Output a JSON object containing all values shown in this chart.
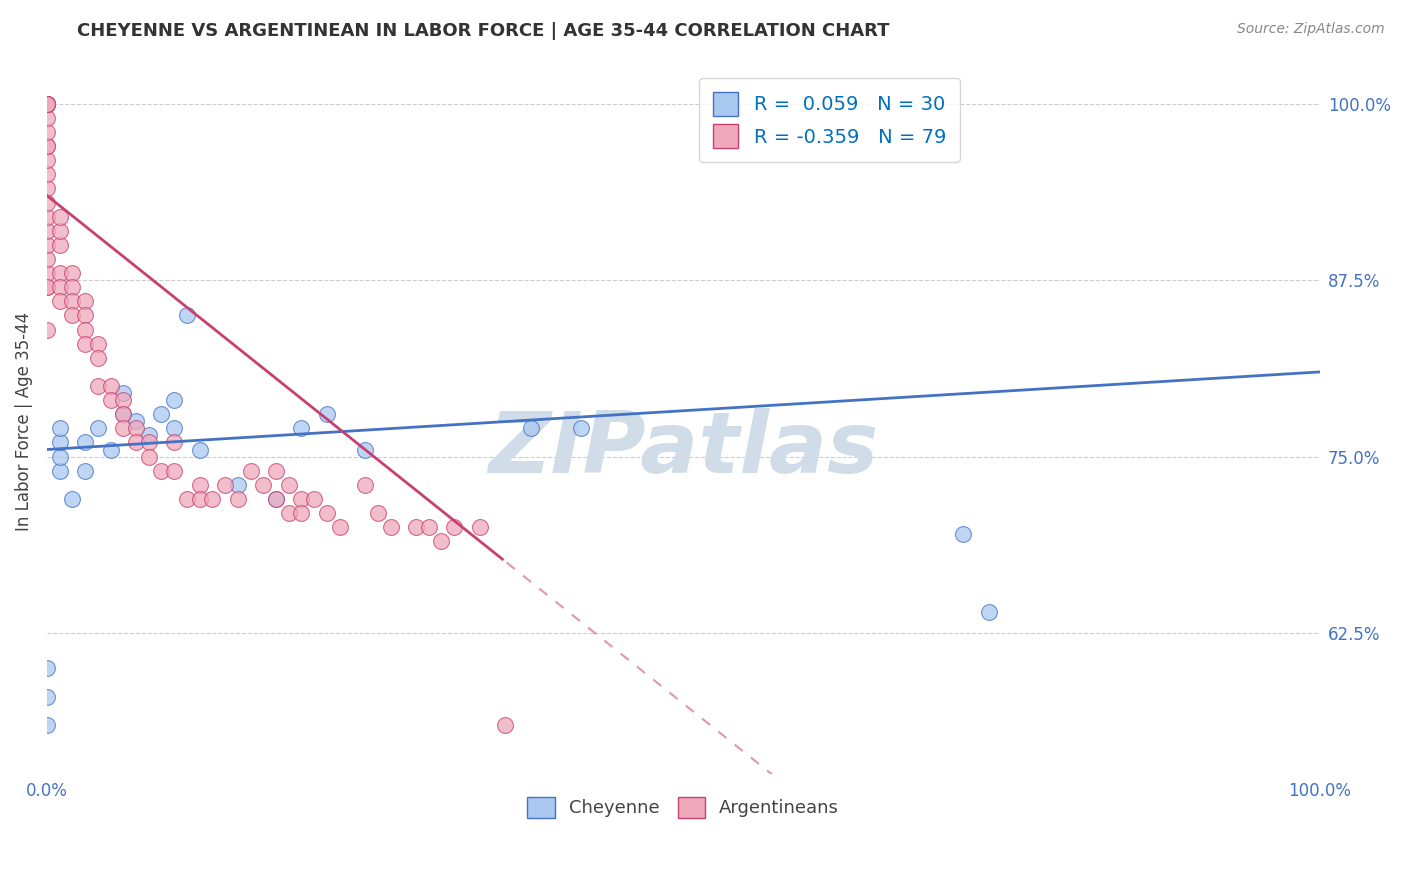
{
  "title": "CHEYENNE VS ARGENTINEAN IN LABOR FORCE | AGE 35-44 CORRELATION CHART",
  "source": "Source: ZipAtlas.com",
  "ylabel": "In Labor Force | Age 35-44",
  "xlim": [
    0.0,
    1.0
  ],
  "ylim": [
    0.525,
    1.025
  ],
  "yticks": [
    0.625,
    0.75,
    0.875,
    1.0
  ],
  "ytick_labels": [
    "62.5%",
    "75.0%",
    "87.5%",
    "100.0%"
  ],
  "R_cheyenne": 0.059,
  "N_cheyenne": 30,
  "R_argentinean": -0.359,
  "N_argentinean": 79,
  "cheyenne_color": "#a8c8f0",
  "argentinean_color": "#f0a8bb",
  "cheyenne_edge_color": "#4472c4",
  "argentinean_edge_color": "#c84070",
  "cheyenne_line_color": "#4472c4",
  "argentinean_line_color": "#c84070",
  "watermark": "ZIPatlas",
  "watermark_color": "#d0dde8",
  "grid_color": "#cccccc",
  "legend_R_color": "#0070c0",
  "title_color": "#333333",
  "source_color": "#888888",
  "tick_color": "#4472c4",
  "ylabel_color": "#444444",
  "cheyenne_x": [
    0.0,
    0.0,
    0.0,
    0.01,
    0.01,
    0.01,
    0.01,
    0.02,
    0.03,
    0.03,
    0.04,
    0.05,
    0.06,
    0.06,
    0.07,
    0.08,
    0.09,
    0.1,
    0.1,
    0.11,
    0.12,
    0.15,
    0.18,
    0.2,
    0.22,
    0.25,
    0.38,
    0.42,
    0.72,
    0.74
  ],
  "cheyenne_y": [
    0.56,
    0.58,
    0.6,
    0.74,
    0.75,
    0.76,
    0.77,
    0.72,
    0.74,
    0.76,
    0.77,
    0.755,
    0.78,
    0.795,
    0.775,
    0.765,
    0.78,
    0.77,
    0.79,
    0.85,
    0.755,
    0.73,
    0.72,
    0.77,
    0.78,
    0.755,
    0.77,
    0.77,
    0.695,
    0.64
  ],
  "argentinean_x": [
    0.0,
    0.0,
    0.0,
    0.0,
    0.0,
    0.0,
    0.0,
    0.0,
    0.0,
    0.0,
    0.0,
    0.0,
    0.0,
    0.0,
    0.0,
    0.0,
    0.0,
    0.0,
    0.0,
    0.0,
    0.0,
    0.0,
    0.0,
    0.0,
    0.01,
    0.01,
    0.01,
    0.01,
    0.01,
    0.01,
    0.02,
    0.02,
    0.02,
    0.02,
    0.03,
    0.03,
    0.03,
    0.03,
    0.04,
    0.04,
    0.04,
    0.05,
    0.05,
    0.06,
    0.06,
    0.06,
    0.07,
    0.07,
    0.08,
    0.08,
    0.09,
    0.1,
    0.1,
    0.11,
    0.12,
    0.12,
    0.13,
    0.14,
    0.15,
    0.16,
    0.17,
    0.18,
    0.18,
    0.19,
    0.19,
    0.2,
    0.2,
    0.21,
    0.22,
    0.23,
    0.25,
    0.26,
    0.27,
    0.29,
    0.3,
    0.31,
    0.32,
    0.34,
    0.36
  ],
  "argentinean_y": [
    0.87,
    0.88,
    0.89,
    0.9,
    0.91,
    0.92,
    0.93,
    0.94,
    0.95,
    0.96,
    0.97,
    0.97,
    0.98,
    0.99,
    1.0,
    1.0,
    1.0,
    1.0,
    1.0,
    1.0,
    1.0,
    1.0,
    0.87,
    0.84,
    0.9,
    0.91,
    0.92,
    0.88,
    0.87,
    0.86,
    0.88,
    0.87,
    0.86,
    0.85,
    0.86,
    0.85,
    0.84,
    0.83,
    0.83,
    0.82,
    0.8,
    0.8,
    0.79,
    0.79,
    0.78,
    0.77,
    0.77,
    0.76,
    0.76,
    0.75,
    0.74,
    0.76,
    0.74,
    0.72,
    0.73,
    0.72,
    0.72,
    0.73,
    0.72,
    0.74,
    0.73,
    0.74,
    0.72,
    0.73,
    0.71,
    0.72,
    0.71,
    0.72,
    0.71,
    0.7,
    0.73,
    0.71,
    0.7,
    0.7,
    0.7,
    0.69,
    0.7,
    0.7,
    0.56
  ]
}
